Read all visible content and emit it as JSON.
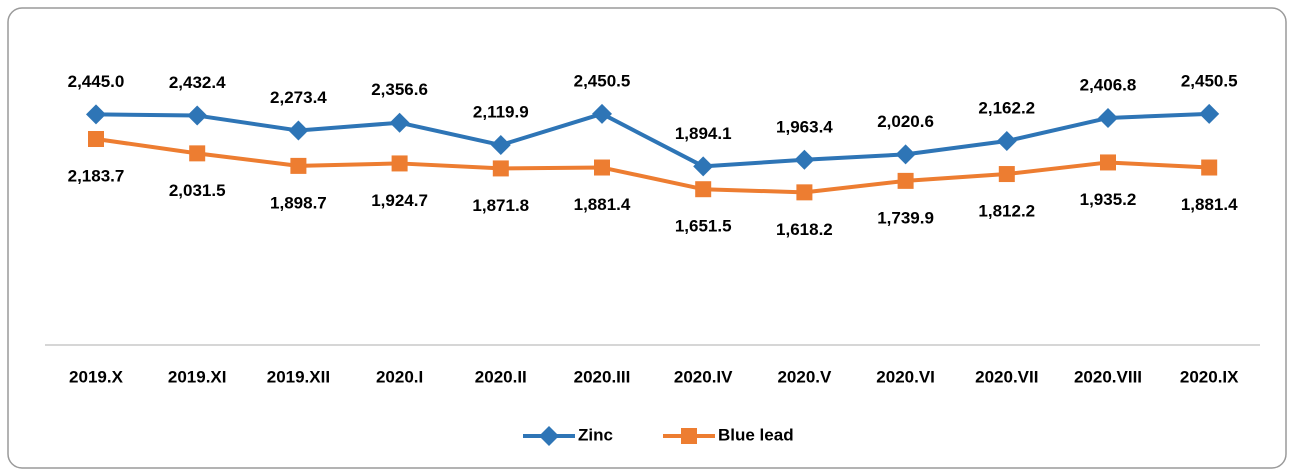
{
  "chart_data": {
    "type": "line",
    "categories": [
      "2019.X",
      "2019.XI",
      "2019.XII",
      "2020.I",
      "2020.II",
      "2020.III",
      "2020.IV",
      "2020.V",
      "2020.VI",
      "2020.VII",
      "2020.VIII",
      "2020.IX"
    ],
    "series": [
      {
        "name": "Zinc",
        "color": "#2e75b6",
        "marker": "diamond",
        "values": [
          2445.0,
          2432.4,
          2273.4,
          2356.6,
          2119.9,
          2450.5,
          1894.1,
          1963.4,
          2020.6,
          2162.2,
          2406.8,
          2450.5
        ],
        "value_labels": [
          "2,445.0",
          "2,432.4",
          "2,273.4",
          "2,356.6",
          "2,119.9",
          "2,450.5",
          "1,894.1",
          "1,963.4",
          "2,020.6",
          "2,162.2",
          "2,406.8",
          "2,450.5"
        ]
      },
      {
        "name": "Blue lead",
        "color": "#ed7d31",
        "marker": "square",
        "values": [
          2183.7,
          2031.5,
          1898.7,
          1924.7,
          1871.8,
          1881.4,
          1651.5,
          1618.2,
          1739.9,
          1812.2,
          1935.2,
          1881.4
        ],
        "value_labels": [
          "2,183.7",
          "2,031.5",
          "1,898.7",
          "1,924.7",
          "1,871.8",
          "1,881.4",
          "1,651.5",
          "1,618.2",
          "1,739.9",
          "1,812.2",
          "1,935.2",
          "1,881.4"
        ]
      }
    ],
    "ylim": [
      0,
      3000
    ],
    "legend": "bottom"
  }
}
